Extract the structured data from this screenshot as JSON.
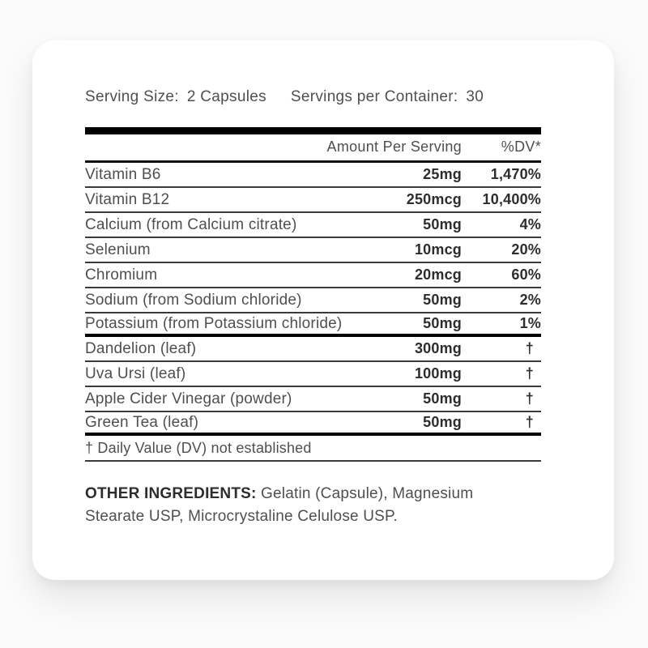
{
  "colors": {
    "card_background": "#ffffff",
    "page_background": "#fbfbfb",
    "text": "#4f4f4f",
    "text_strong": "#2d2d2d",
    "rule": "#000000"
  },
  "serving": {
    "size_label": "Serving Size:",
    "size_value": "2 Capsules",
    "per_container_label": "Servings per Container:",
    "per_container_value": "30"
  },
  "table": {
    "headers": {
      "amount": "Amount Per Serving",
      "dv": "%DV*"
    },
    "rows": [
      {
        "name": "Vitamin B6",
        "amount": "25mg",
        "dv": "1,470%"
      },
      {
        "name": "Vitamin B12",
        "amount": "250mcg",
        "dv": "10,400%"
      },
      {
        "name": "Calcium (from Calcium citrate)",
        "amount": "50mg",
        "dv": "4%"
      },
      {
        "name": "Selenium",
        "amount": "10mcg",
        "dv": "20%"
      },
      {
        "name": "Chromium",
        "amount": "20mcg",
        "dv": "60%"
      },
      {
        "name": "Sodium (from Sodium chloride)",
        "amount": "50mg",
        "dv": "2%"
      },
      {
        "name": "Potassium (from Potassium chloride)",
        "amount": "50mg",
        "dv": "1%"
      },
      {
        "name": "Dandelion (leaf)",
        "amount": "300mg",
        "dv": "†"
      },
      {
        "name": "Uva Ursi (leaf)",
        "amount": "100mg",
        "dv": "†"
      },
      {
        "name": "Apple Cider Vinegar (powder)",
        "amount": "50mg",
        "dv": "†"
      },
      {
        "name": "Green Tea (leaf)",
        "amount": "50mg",
        "dv": "†"
      }
    ],
    "footnote": "† Daily Value (DV) not established"
  },
  "other_ingredients": {
    "label": "OTHER INGREDIENTS:",
    "text": " Gelatin (Capsule), Magnesium Stearate USP, Microcrystaline Celulose USP."
  }
}
